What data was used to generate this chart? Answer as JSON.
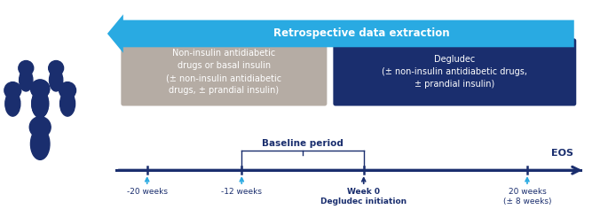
{
  "bg_color": "#ffffff",
  "dark_blue": "#1a2e6e",
  "light_blue": "#29aae2",
  "gray_box_color": "#b5aca4",
  "dark_box_color": "#1a2e6e",
  "gray_box_text": "Non-insulin antidiabetic\ndrugs or basal insulin\n(± non-insulin antidiabetic\ndrugs, ± prandial insulin)",
  "dark_box_text": "Degludec\n(± non-insulin antidiabetic drugs,\n± prandial insulin)",
  "arrow_text": "Retrospective data extraction",
  "timeline_points": [
    -20,
    -12,
    0,
    20
  ],
  "tick_labels": [
    "-20 weeks",
    "-12 weeks",
    "Week 0\nDegludec initiation",
    "20 weeks\n(± 8 weeks)"
  ],
  "eos_label": "EOS",
  "baseline_label": "Baseline period"
}
